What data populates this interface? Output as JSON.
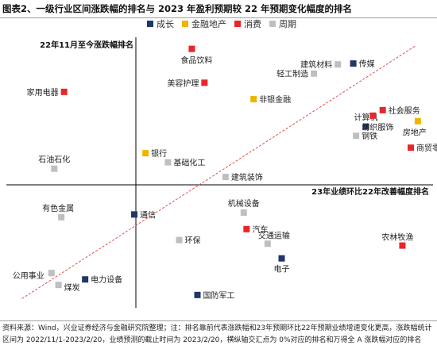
{
  "figure": {
    "title": "图表2、一级行业区间涨跌幅的排名与 2023 年盈利预期较 22 年预期变化幅度的排名",
    "source": "资料来源：Wind，兴业证券经济与金融研究院整理；注：排名靠前代表涨跌幅和23年预期环比22年预期业绩增速变化更高，涨跌幅统计区间为 2022/11/1-2023/2/20，业绩预测的截止时间为 2023/2/20，横纵轴交汇点为 0%对应的排名和万得全 A 涨跌幅对应的排名"
  },
  "chart_data": {
    "type": "scatter",
    "title": "图表2、一级行业区间涨跌幅的排名与 2023 年盈利预期较 22 年预期变化幅度的排名",
    "xlabel": "23年业绩环比22年改善幅度排名",
    "ylabel": "22年11月至今涨跌幅排名",
    "xlim": [
      0,
      30
    ],
    "ylim": [
      0,
      30
    ],
    "origin": [
      7.5,
      11.5
    ],
    "trendline": {
      "style": "dashed",
      "color": "#e05050",
      "from": [
        1,
        1
      ],
      "to": [
        29,
        28.6
      ]
    },
    "grid": false,
    "legend_position": "top",
    "series": [
      {
        "name": "成长",
        "color": "#1f3864",
        "points": [
          {
            "label": "传媒",
            "x": 24.6,
            "y": 26.7
          },
          {
            "label": "计算机",
            "x": 25.5,
            "y": 19.8
          },
          {
            "label": "通信",
            "x": 9.0,
            "y": 10.2
          },
          {
            "label": "电子",
            "x": 19.5,
            "y": 5.4
          },
          {
            "label": "电力设备",
            "x": 5.5,
            "y": 3.1
          },
          {
            "label": "国防军工",
            "x": 13.5,
            "y": 1.4
          }
        ]
      },
      {
        "name": "金融地产",
        "color": "#f0b400",
        "points": [
          {
            "label": "非银金融",
            "x": 17.5,
            "y": 22.8
          },
          {
            "label": "房地产",
            "x": 29.2,
            "y": 20.4
          },
          {
            "label": "银行",
            "x": 9.8,
            "y": 16.9
          }
        ]
      },
      {
        "name": "消费",
        "color": "#e8262a",
        "points": [
          {
            "label": "食品饮料",
            "x": 13.1,
            "y": 28.3
          },
          {
            "label": "美容护理",
            "x": 14.0,
            "y": 24.6
          },
          {
            "label": "家用电器",
            "x": 4.0,
            "y": 23.6
          },
          {
            "label": "社会服务",
            "x": 26.7,
            "y": 21.6
          },
          {
            "label": "纺织服饰",
            "x": 26.0,
            "y": 21.0
          },
          {
            "label": "商贸零售",
            "x": 28.7,
            "y": 17.5
          },
          {
            "label": "汽车",
            "x": 17.0,
            "y": 8.6
          },
          {
            "label": "农林牧渔",
            "x": 28.1,
            "y": 6.8
          }
        ]
      },
      {
        "name": "周期",
        "color": "#bfbfbf",
        "points": [
          {
            "label": "建筑材料",
            "x": 23.5,
            "y": 26.6
          },
          {
            "label": "轻工制造",
            "x": 21.8,
            "y": 25.6
          },
          {
            "label": "钢铁",
            "x": 24.8,
            "y": 18.8
          },
          {
            "label": "基础化工",
            "x": 11.4,
            "y": 15.9
          },
          {
            "label": "建筑装饰",
            "x": 15.5,
            "y": 14.3
          },
          {
            "label": "石油石化",
            "x": 3.3,
            "y": 15.2
          },
          {
            "label": "机械设备",
            "x": 16.8,
            "y": 10.4
          },
          {
            "label": "有色金属",
            "x": 3.8,
            "y": 9.9
          },
          {
            "label": "环保",
            "x": 12.2,
            "y": 7.4
          },
          {
            "label": "交通运输",
            "x": 18.5,
            "y": 7.0
          },
          {
            "label": "公用事业",
            "x": 3.1,
            "y": 3.8
          },
          {
            "label": "煤炭",
            "x": 3.6,
            "y": 2.5
          }
        ]
      }
    ]
  }
}
